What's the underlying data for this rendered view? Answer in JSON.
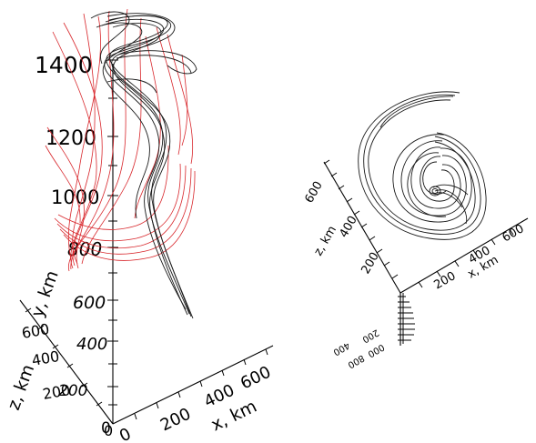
{
  "left_panel": {
    "z_ticks": [
      "1400",
      "1200",
      "1000",
      "800",
      "600",
      "400",
      "200",
      "0"
    ],
    "y_ticks": [
      "600",
      "400",
      "200",
      "0"
    ],
    "x_ticks": [
      "0",
      "200",
      "400",
      "600"
    ],
    "z_axis_label": "z, km",
    "y_axis_label": "y, km",
    "x_axis_label": "x, km",
    "colors": {
      "black_lines": "#1a1a1a",
      "red_lines": "#d8262b"
    }
  },
  "right_panel": {
    "z_ticks": [
      "600",
      "400",
      "200"
    ],
    "x_ticks": [
      "200",
      "400",
      "600"
    ],
    "y_ticks_mirrored": [
      "400",
      "200",
      "000",
      "800"
    ],
    "z_axis_label": "z, km",
    "x_axis_label": "x, km"
  }
}
